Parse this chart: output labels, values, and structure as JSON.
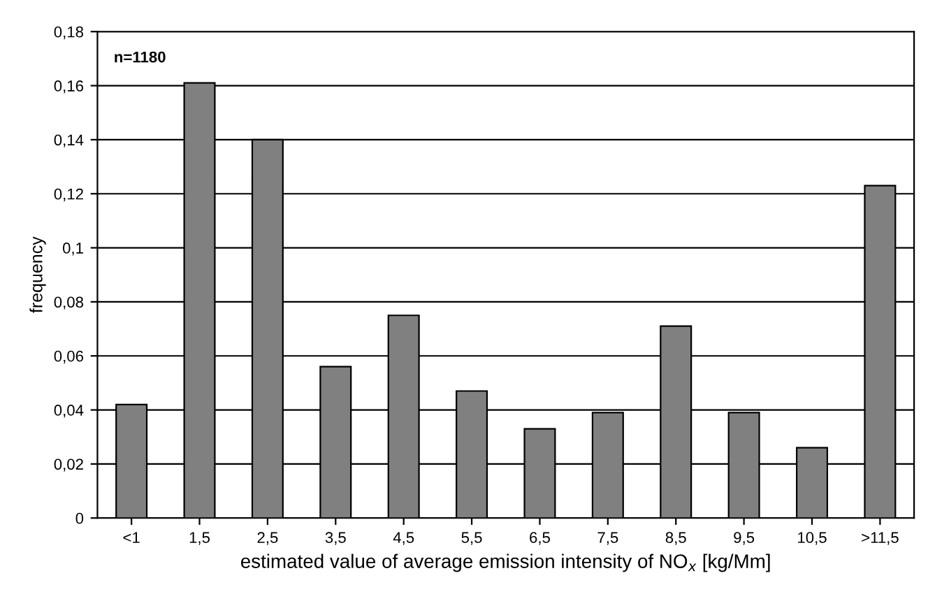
{
  "chart_data": {
    "type": "bar",
    "xlabel": "estimated value of average emission intensity of NO$_{x}$ [kg/Mm]",
    "ylabel": "frequency",
    "annotations": [
      "n=1180"
    ],
    "categories": [
      "<1",
      "1,5",
      "2,5",
      "3,5",
      "4,5",
      "5,5",
      "6,5",
      "7,5",
      "8,5",
      "9,5",
      "10,5",
      ">11,5"
    ],
    "values": [
      0.042,
      0.161,
      0.14,
      0.056,
      0.075,
      0.047,
      0.033,
      0.039,
      0.071,
      0.039,
      0.026,
      0.123
    ],
    "color": "#808080",
    "ylim": [
      0,
      0.18
    ],
    "yticks": [
      0,
      {
        "value": 0.02,
        "label": "0,02"
      },
      {
        "value": 0.04,
        "label": "0,04"
      },
      {
        "value": 0.06,
        "label": "0,06"
      },
      {
        "value": 0.08,
        "label": "0,08"
      },
      {
        "value": 0.1,
        "label": "0,1"
      },
      {
        "value": 0.12,
        "label": "0,12"
      },
      {
        "value": 0.14,
        "label": "0,14"
      },
      {
        "value": 0.16,
        "label": "0,16"
      },
      {
        "value": 0.18,
        "label": "0,18"
      }
    ],
    "grid": "y"
  }
}
